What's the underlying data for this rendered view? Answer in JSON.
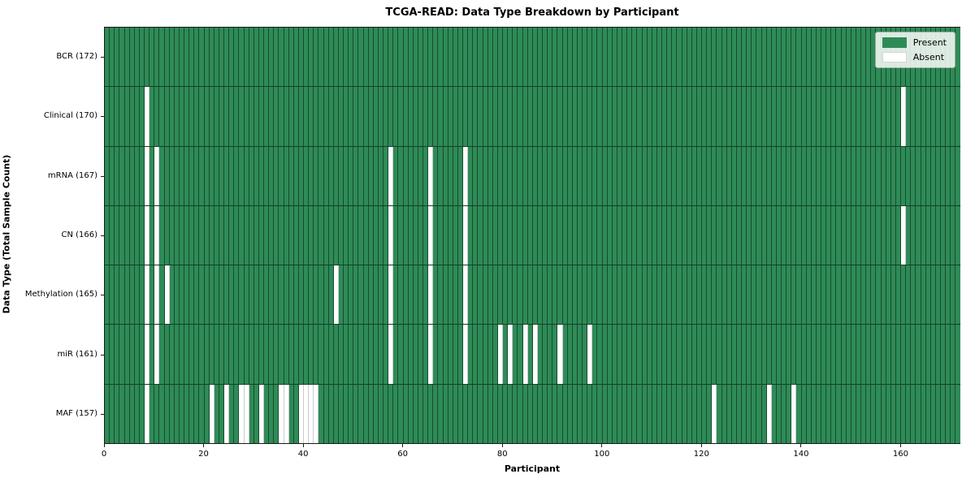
{
  "chart_data": {
    "type": "heatmap",
    "title": "TCGA-READ: Data Type Breakdown by Participant",
    "xlabel": "Participant",
    "ylabel": "Data Type (Total Sample Count)",
    "n_participants": 172,
    "xlim": [
      0,
      172
    ],
    "x_ticks": [
      0,
      20,
      40,
      60,
      80,
      100,
      120,
      140,
      160
    ],
    "grid": "cell-edges",
    "legend_position": "upper right",
    "legend": [
      {
        "label": "Present",
        "color": "#2e8b57"
      },
      {
        "label": "Absent",
        "color": "#ffffff"
      }
    ],
    "colors": {
      "present": "#2e8b57",
      "absent": "#ffffff",
      "cell_edge": "#14321f",
      "row_separator": "#000000",
      "legend_background": "#eef5ee"
    },
    "rows": [
      {
        "label": "BCR (172)",
        "data_type": "BCR",
        "total_sample_count": 172,
        "absent_participants": []
      },
      {
        "label": "Clinical (170)",
        "data_type": "Clinical",
        "total_sample_count": 170,
        "absent_participants": [
          8,
          160
        ]
      },
      {
        "label": "mRNA (167)",
        "data_type": "mRNA",
        "total_sample_count": 167,
        "absent_participants": [
          8,
          10,
          57,
          65,
          72
        ]
      },
      {
        "label": "CN (166)",
        "data_type": "CN",
        "total_sample_count": 166,
        "absent_participants": [
          8,
          10,
          57,
          65,
          72,
          160
        ]
      },
      {
        "label": "Methylation (165)",
        "data_type": "Methylation",
        "total_sample_count": 165,
        "absent_participants": [
          8,
          10,
          12,
          46,
          57,
          65,
          72
        ]
      },
      {
        "label": "miR (161)",
        "data_type": "miR",
        "total_sample_count": 161,
        "absent_participants": [
          8,
          10,
          57,
          65,
          72,
          79,
          81,
          84,
          86,
          91,
          97
        ]
      },
      {
        "label": "MAF (157)",
        "data_type": "MAF",
        "total_sample_count": 157,
        "absent_participants": [
          8,
          21,
          24,
          27,
          28,
          31,
          35,
          36,
          39,
          40,
          41,
          42,
          122,
          133,
          138
        ]
      }
    ]
  }
}
